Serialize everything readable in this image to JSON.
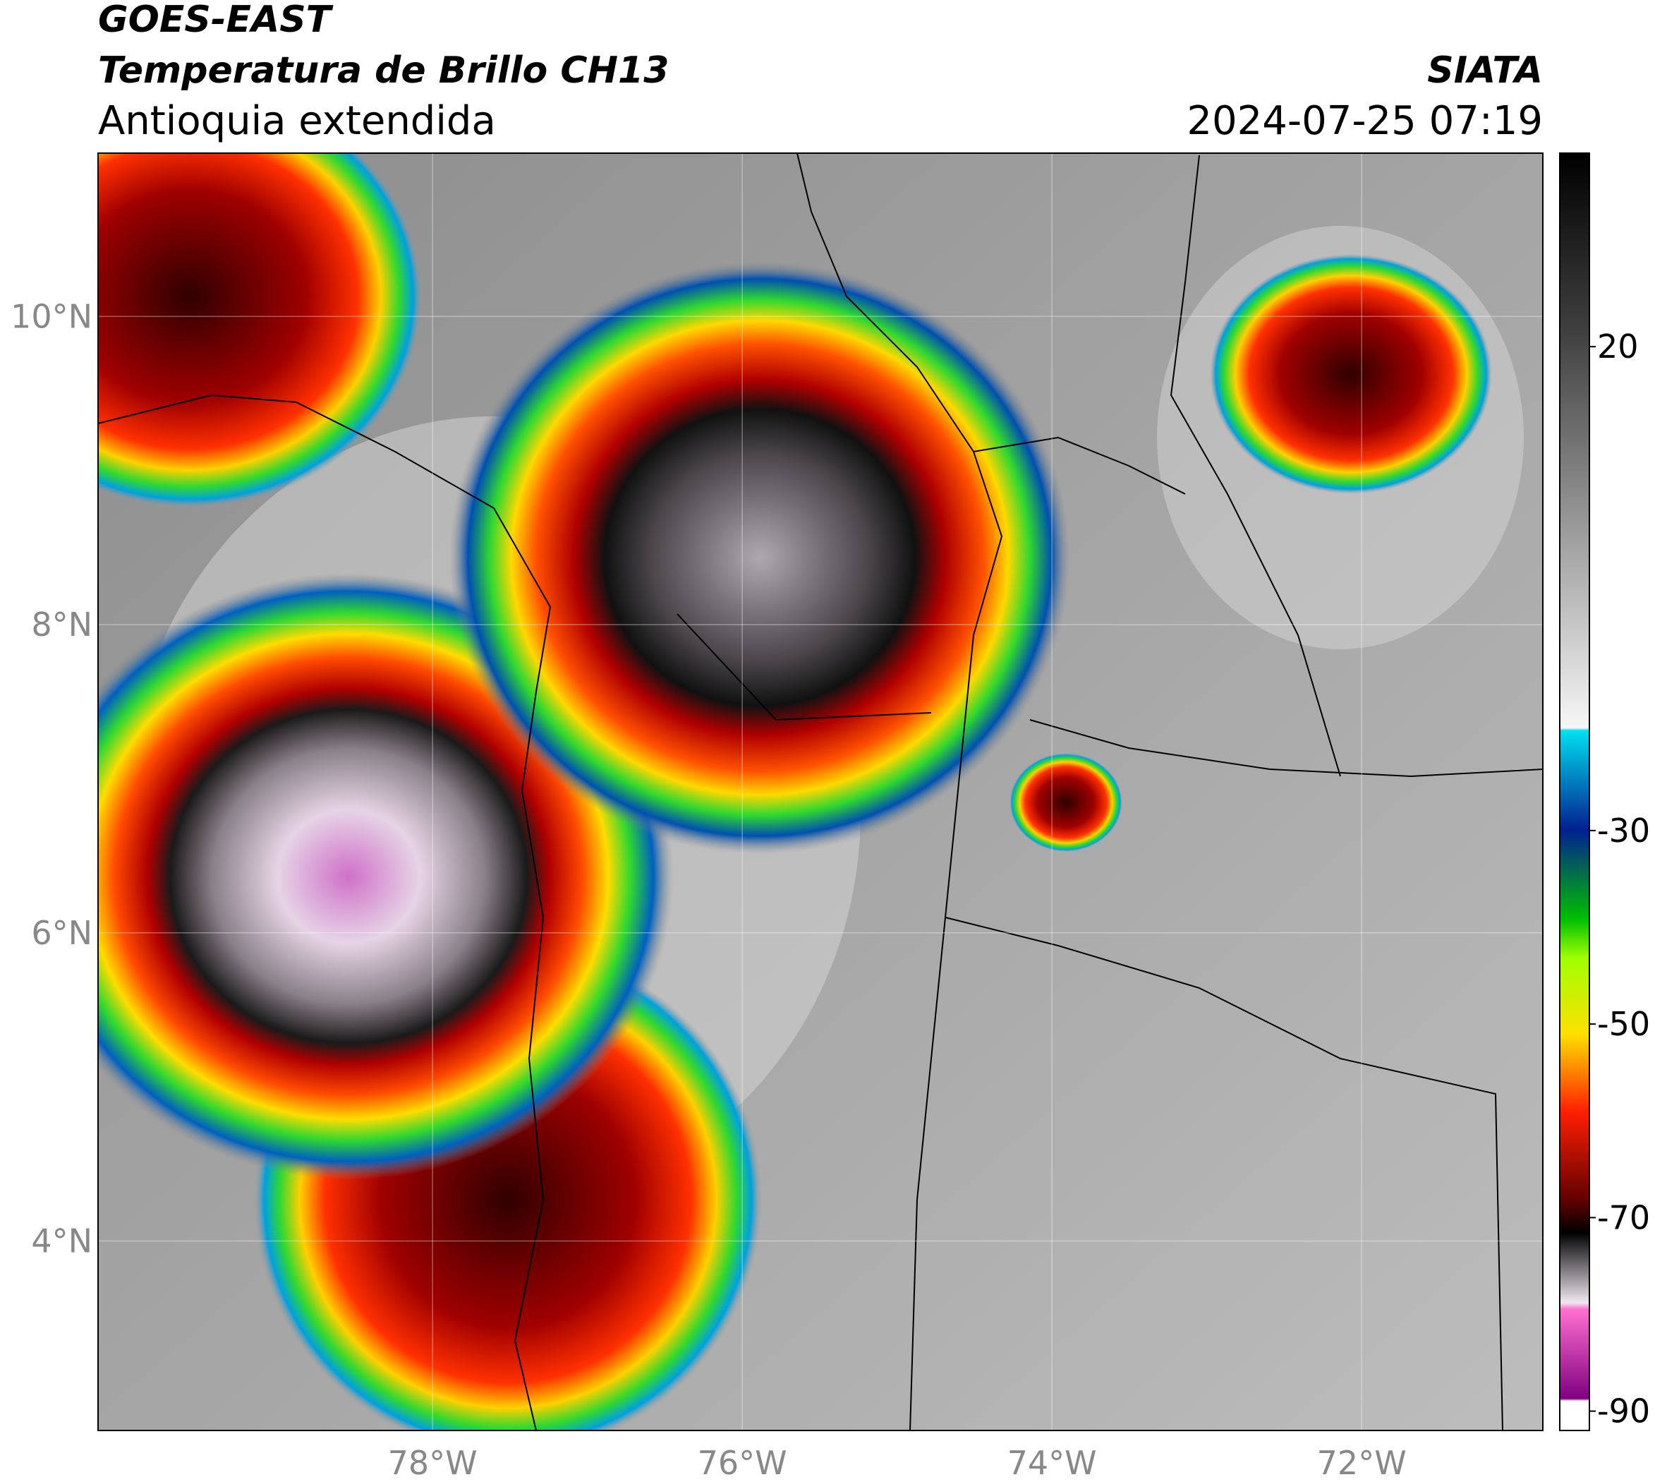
{
  "header": {
    "title": "GOES-EAST",
    "subtitle": "Temperatura de Brillo CH13",
    "region": "Antioquia extendida",
    "source": "SIATA",
    "datetime": "2024-07-25 07:19"
  },
  "map": {
    "xlim": [
      -80.16,
      -70.83
    ],
    "ylim": [
      2.77,
      11.06
    ],
    "xticks": [
      {
        "value": -78,
        "label": "78°W"
      },
      {
        "value": -76,
        "label": "76°W"
      },
      {
        "value": -74,
        "label": "74°W"
      },
      {
        "value": -72,
        "label": "72°W"
      }
    ],
    "yticks": [
      {
        "value": 4,
        "label": "4°N"
      },
      {
        "value": 6,
        "label": "6°N"
      },
      {
        "value": 8,
        "label": "8°N"
      },
      {
        "value": 10,
        "label": "10°N"
      }
    ],
    "grid": true,
    "colorbar": {
      "lim": [
        -92,
        40
      ],
      "ticks": [
        -90,
        -70,
        -50,
        -30,
        20
      ]
    }
  }
}
